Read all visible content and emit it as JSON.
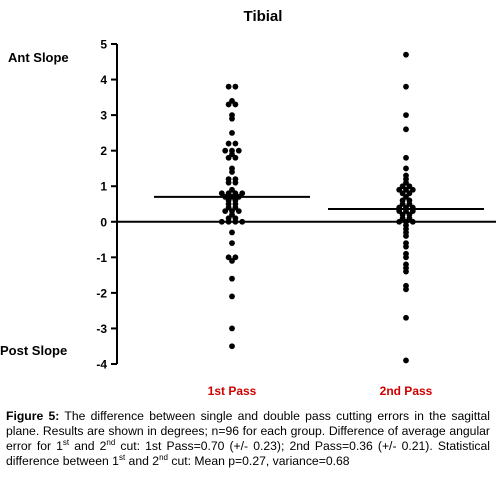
{
  "chart_data": {
    "type": "scatter",
    "title": "Tibial",
    "top_label": "Ant Slope",
    "bottom_label": "Post Slope",
    "categories": [
      "1st Pass",
      "2nd Pass"
    ],
    "category_color": "#d10000",
    "ylim": [
      -4,
      5
    ],
    "yticks": [
      "5",
      "4",
      "3",
      "2",
      "1",
      "0",
      "-1",
      "-2",
      "-3",
      "-4"
    ],
    "means": [
      0.7,
      0.36
    ],
    "series": [
      {
        "values": [
          3.8,
          3.8,
          3.4,
          3.3,
          3.3,
          3.0,
          2.9,
          2.5,
          2.2,
          2.2,
          2.0,
          2.0,
          2.0,
          1.9,
          1.8,
          1.8,
          1.5,
          1.4,
          1.2,
          1.2,
          1.1,
          1.1,
          0.9,
          0.8,
          0.8,
          0.8,
          0.8,
          0.7,
          0.7,
          0.7,
          0.6,
          0.6,
          0.5,
          0.5,
          0.4,
          0.4,
          0.3,
          0.3,
          0.3,
          0.2,
          0.1,
          0.1,
          0.0,
          0.0,
          0.0,
          0.0,
          -0.3,
          -0.6,
          -1.0,
          -1.0,
          -1.1,
          -1.6,
          -2.1,
          -3.0,
          -3.5
        ]
      },
      {
        "values": [
          4.7,
          3.8,
          3.0,
          2.6,
          1.8,
          1.5,
          1.3,
          1.2,
          1.1,
          1.0,
          1.0,
          0.9,
          0.9,
          0.9,
          0.8,
          0.8,
          0.7,
          0.6,
          0.6,
          0.5,
          0.5,
          0.4,
          0.4,
          0.4,
          0.3,
          0.3,
          0.3,
          0.2,
          0.2,
          0.1,
          0.1,
          0.0,
          0.0,
          0.0,
          -0.1,
          -0.2,
          -0.3,
          -0.4,
          -0.6,
          -0.7,
          -0.9,
          -1.0,
          -1.2,
          -1.3,
          -1.4,
          -1.8,
          -1.9,
          -2.7,
          -3.9
        ]
      }
    ]
  },
  "caption": {
    "label": "Figure 5:",
    "text": "The difference between single and double pass cutting errors in the sagittal plane. Results are shown in degrees; n=96 for each group. Difference of average angular error for 1st and 2nd cut: 1st Pass=0.70 (+/- 0.23); 2nd Pass=0.36 (+/- 0.21).  Statistical difference between 1st and 2nd cut: Mean p=0.27, variance=0.68"
  }
}
